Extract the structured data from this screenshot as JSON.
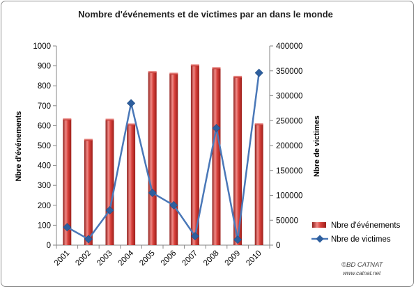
{
  "chart_data": {
    "type": "bar",
    "title": "Nombre d'événements et de victimes par an dans le monde",
    "categories": [
      "2001",
      "2002",
      "2003",
      "2004",
      "2005",
      "2006",
      "2007",
      "2008",
      "2009",
      "2010"
    ],
    "series": [
      {
        "name": "Nbre d'événements",
        "type": "bar",
        "axis": "left",
        "color": "#c0302b",
        "values": [
          632,
          529,
          630,
          606,
          869,
          861,
          903,
          889,
          845,
          607
        ]
      },
      {
        "name": "Nbre de victimes",
        "type": "line",
        "axis": "right",
        "color": "#4a78b8",
        "values": [
          36000,
          12000,
          70000,
          285000,
          105000,
          80000,
          18000,
          235000,
          11000,
          346000
        ]
      }
    ],
    "y_left": {
      "label": "Nbre d'événements",
      "ylim": [
        0,
        1000
      ],
      "ticks": [
        "0",
        "100",
        "200",
        "300",
        "400",
        "500",
        "600",
        "700",
        "800",
        "900",
        "1000"
      ]
    },
    "y_right": {
      "label": "Nbre de victimes",
      "ylim": [
        0,
        400000
      ],
      "ticks": [
        "0",
        "50000",
        "100000",
        "150000",
        "200000",
        "250000",
        "300000",
        "350000",
        "400000"
      ]
    },
    "legend_position": "right",
    "grid": false
  },
  "footer": {
    "copyright": "©BD CATNAT",
    "url": "www.catnat.net"
  }
}
